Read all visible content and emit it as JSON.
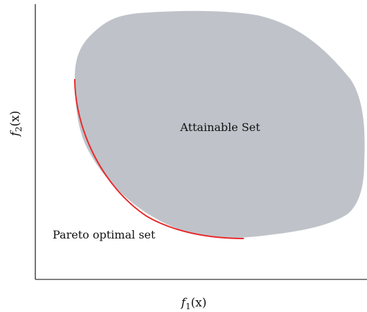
{
  "figure": {
    "region_label": "Attainable Set",
    "front_label": "Pareto optimal set",
    "x_axis": {
      "name": "f",
      "subscript": "1",
      "argument": "(x)"
    },
    "y_axis": {
      "name": "f",
      "subscript": "2",
      "argument": "(x)"
    }
  },
  "colors": {
    "region_fill": "#bfc3c9",
    "front_curve": "#e8292b",
    "axes": "#000000",
    "text": "#111111"
  }
}
